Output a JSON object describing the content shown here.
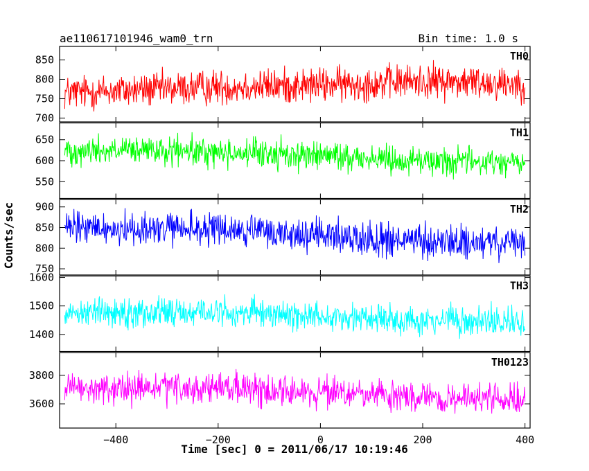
{
  "header": {
    "title": "ae110617101946_wam0_trn",
    "bin_time": "Bin time: 1.0 s"
  },
  "axes": {
    "xlabel": "Time [sec] 0 = 2011/06/17 10:19:46",
    "ylabel": "Counts/sec"
  },
  "chart_data": {
    "type": "line",
    "x_range": [
      -510,
      410
    ],
    "x_ticks": [
      -400,
      -200,
      0,
      200,
      400
    ],
    "x_step": 1,
    "panels": [
      {
        "name": "TH0",
        "color": "#ff0000",
        "ylim": [
          690,
          885
        ],
        "y_ticks": [
          700,
          750,
          800,
          850
        ],
        "x_start": -500,
        "x_end": 400,
        "mean_profile": {
          "x": [
            -500,
            -200,
            0,
            200,
            400
          ],
          "y": [
            765,
            780,
            785,
            795,
            790
          ]
        },
        "noise_amplitude": 42
      },
      {
        "name": "TH1",
        "color": "#00ff00",
        "ylim": [
          510,
          690
        ],
        "y_ticks": [
          550,
          600,
          650
        ],
        "x_start": -500,
        "x_end": 400,
        "mean_profile": {
          "x": [
            -500,
            -200,
            0,
            200,
            400
          ],
          "y": [
            625,
            620,
            612,
            600,
            595
          ]
        },
        "noise_amplitude": 32
      },
      {
        "name": "TH2",
        "color": "#0000ff",
        "ylim": [
          735,
          918
        ],
        "y_ticks": [
          750,
          800,
          850,
          900
        ],
        "x_start": -500,
        "x_end": 400,
        "mean_profile": {
          "x": [
            -500,
            -200,
            0,
            200,
            400
          ],
          "y": [
            848,
            845,
            830,
            815,
            810
          ]
        },
        "noise_amplitude": 38
      },
      {
        "name": "TH3",
        "color": "#00ffff",
        "ylim": [
          1340,
          1605
        ],
        "y_ticks": [
          1400,
          1500,
          1600
        ],
        "x_start": -500,
        "x_end": 400,
        "mean_profile": {
          "x": [
            -500,
            -200,
            0,
            200,
            400
          ],
          "y": [
            1480,
            1478,
            1465,
            1450,
            1440
          ]
        },
        "noise_amplitude": 48
      },
      {
        "name": "TH0123",
        "color": "#ff00ff",
        "ylim": [
          3430,
          3960
        ],
        "y_ticks": [
          3600,
          3800
        ],
        "x_start": -500,
        "x_end": 400,
        "mean_profile": {
          "x": [
            -500,
            -200,
            0,
            200,
            400
          ],
          "y": [
            3700,
            3710,
            3680,
            3640,
            3630
          ]
        },
        "noise_amplitude": 100
      }
    ]
  }
}
